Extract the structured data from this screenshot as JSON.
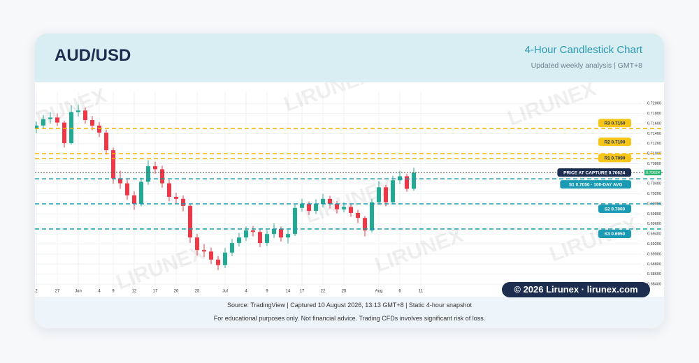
{
  "header": {
    "title": "AUD/USD",
    "subtitle": "4-Hour Candlestick Chart",
    "note": "Updated weekly analysis | GMT+8"
  },
  "chart_data": {
    "type": "candlestick",
    "grid": true,
    "watermark": "LIRUNEX",
    "up_color": "#22ab94",
    "down_color": "#f23645",
    "categories": [
      "2",
      null,
      null,
      "27",
      null,
      null,
      "Jun",
      null,
      null,
      "4",
      null,
      "9",
      null,
      null,
      "12",
      null,
      null,
      "17",
      null,
      null,
      "20",
      null,
      null,
      "25",
      null,
      null,
      null,
      "Jul",
      null,
      null,
      "4",
      null,
      null,
      "9",
      null,
      null,
      "14",
      null,
      "17",
      null,
      null,
      "22",
      null,
      null,
      "25",
      null,
      null,
      null,
      null,
      "Aug",
      null,
      null,
      "6",
      null,
      null,
      "11"
    ],
    "open": [
      0.715,
      0.7156,
      0.7169,
      0.7172,
      0.7162,
      0.7121,
      0.7183,
      0.7186,
      0.7167,
      0.7156,
      0.7142,
      0.7107,
      0.7051,
      0.7041,
      0.7017,
      0.7,
      0.7044,
      0.7075,
      0.7069,
      0.7041,
      0.7014,
      0.701,
      0.6996,
      0.6933,
      0.6908,
      0.6905,
      0.6889,
      0.6878,
      0.6903,
      0.6922,
      0.6933,
      0.6947,
      0.6944,
      0.6922,
      0.694,
      0.695,
      0.6933,
      0.694,
      0.6992,
      0.7,
      0.6986,
      0.7,
      0.701,
      0.7,
      0.6989,
      0.6994,
      0.6982,
      0.6972,
      0.6947,
      0.7003,
      0.7033,
      0.7003,
      0.7047,
      0.7055,
      0.703,
      null
    ],
    "high": [
      0.7164,
      0.7177,
      0.7183,
      0.718,
      0.7166,
      0.7196,
      0.7198,
      0.7192,
      0.7175,
      0.7163,
      0.7148,
      0.7112,
      0.7066,
      0.705,
      0.7025,
      0.7052,
      0.7087,
      0.7084,
      0.7076,
      0.7048,
      0.7022,
      0.7017,
      0.7,
      0.694,
      0.692,
      0.6913,
      0.6896,
      0.6912,
      0.693,
      0.6942,
      0.6955,
      0.6956,
      0.695,
      0.6948,
      0.6961,
      0.6955,
      0.6949,
      0.7,
      0.701,
      0.7005,
      0.7009,
      0.702,
      0.7016,
      0.7006,
      0.7003,
      0.7,
      0.6988,
      0.6976,
      0.701,
      0.7045,
      0.7038,
      0.7056,
      0.7066,
      0.706,
      0.7072,
      null
    ],
    "low": [
      0.7141,
      0.715,
      0.716,
      0.7155,
      0.7112,
      0.7118,
      0.7174,
      0.716,
      0.7147,
      0.7133,
      0.7098,
      0.704,
      0.703,
      0.7008,
      0.6988,
      0.6995,
      0.7038,
      0.706,
      0.7032,
      0.7005,
      0.7001,
      0.6985,
      0.6922,
      0.6897,
      0.6894,
      0.688,
      0.6868,
      0.6872,
      0.6896,
      0.6915,
      0.6926,
      0.6935,
      0.6914,
      0.6916,
      0.6932,
      0.6925,
      0.6921,
      0.6936,
      0.6985,
      0.6978,
      0.698,
      0.6993,
      0.6991,
      0.6981,
      0.6983,
      0.6974,
      0.6962,
      0.6935,
      0.6943,
      0.6998,
      0.6995,
      0.7,
      0.704,
      0.7024,
      0.7026,
      null
    ],
    "close": [
      0.7156,
      0.7169,
      0.7172,
      0.7162,
      0.7121,
      0.7183,
      0.7186,
      0.7167,
      0.7156,
      0.7142,
      0.7107,
      0.7051,
      0.7041,
      0.7017,
      0.7,
      0.7044,
      0.7075,
      0.7069,
      0.7041,
      0.7014,
      0.701,
      0.6996,
      0.6933,
      0.6908,
      0.6905,
      0.6889,
      0.6878,
      0.6903,
      0.6922,
      0.6933,
      0.6947,
      0.6944,
      0.6922,
      0.694,
      0.695,
      0.6933,
      0.694,
      0.6992,
      0.7,
      0.6986,
      0.7,
      0.701,
      0.7,
      0.6989,
      0.6994,
      0.6982,
      0.6972,
      0.6947,
      0.7003,
      0.7033,
      0.7003,
      0.7047,
      0.7055,
      0.703,
      0.7062,
      null
    ],
    "ylim": [
      0.6822,
      0.7224
    ],
    "yticks": [
      {
        "value": 0.72,
        "label": "0.72000"
      },
      {
        "value": 0.718,
        "label": "0.71800"
      },
      {
        "value": 0.716,
        "label": "0.71600"
      },
      {
        "value": 0.714,
        "label": "0.71400"
      },
      {
        "value": 0.712,
        "label": "0.71200"
      },
      {
        "value": 0.71,
        "label": "0.71000"
      },
      {
        "value": 0.708,
        "label": "0.70800"
      },
      {
        "value": 0.706,
        "label": "0.70600"
      },
      {
        "value": 0.704,
        "label": "0.70400"
      },
      {
        "value": 0.702,
        "label": "0.70200"
      },
      {
        "value": 0.7,
        "label": "0.70000"
      },
      {
        "value": 0.698,
        "label": "0.69800"
      },
      {
        "value": 0.696,
        "label": "0.69600"
      },
      {
        "value": 0.694,
        "label": "0.69400"
      },
      {
        "value": 0.692,
        "label": "0.69200"
      },
      {
        "value": 0.69,
        "label": "0.69000"
      },
      {
        "value": 0.688,
        "label": "0.68800"
      },
      {
        "value": 0.686,
        "label": "0.68600"
      },
      {
        "value": 0.684,
        "label": "0.68400"
      }
    ],
    "levels": [
      {
        "label": "R3 0.7150",
        "value": 0.715,
        "color": "#f0b400",
        "style": "dashed"
      },
      {
        "label": "R2 0.7100",
        "value": 0.71,
        "color": "#f0b400",
        "style": "dashed"
      },
      {
        "label": "R1 0.7090",
        "value": 0.709,
        "color": "#f0b400",
        "style": "dashed"
      },
      {
        "label": "PRICE AT CAPTURE 0.70624",
        "value": 0.70624,
        "color": "#1c2d4f",
        "style": "dotted",
        "tag": "0.70624",
        "tag_color": "#2bb673"
      },
      {
        "label": "S1 0.7050 · 100-DAY AVG",
        "value": 0.705,
        "color": "#1b9bb3",
        "style": "dashed"
      },
      {
        "label": "S2 0.7000",
        "value": 0.7,
        "color": "#1b9bb3",
        "style": "dashed"
      },
      {
        "label": "S3 0.6950",
        "value": 0.695,
        "color": "#1b9bb3",
        "style": "dashed"
      }
    ]
  },
  "footer": {
    "source": "Source: TradingView | Captured 10 August 2026, 13:13 GMT+8 | Static 4-hour snapshot",
    "disclaimer": "For educational purposes only. Not financial advice. Trading CFDs involves significant risk of loss."
  },
  "badge": "© 2026 Lirunex · lirunex.com"
}
